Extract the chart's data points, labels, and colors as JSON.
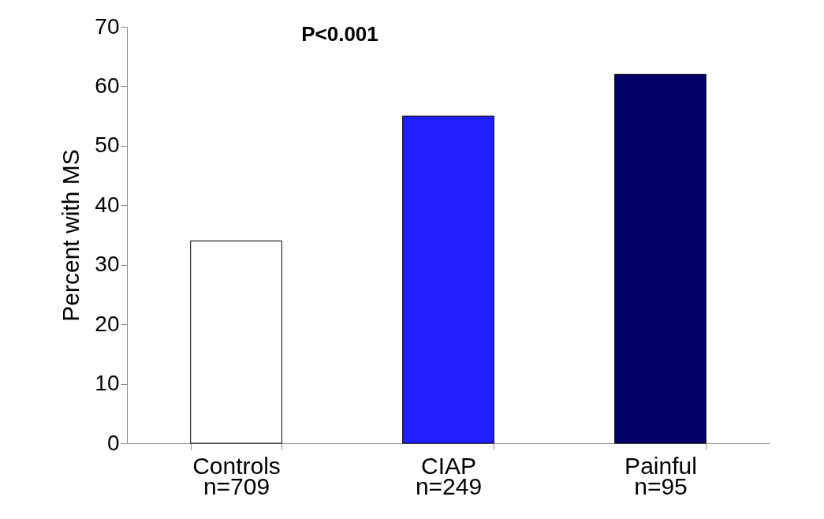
{
  "chart_data": {
    "type": "bar",
    "ylabel": "Percent with MS",
    "categories": [
      "Controls\nn=709",
      "CIAP\nn=249",
      "Painful\nn=95"
    ],
    "values": [
      34,
      55,
      62
    ],
    "colors": [
      "#ffffff",
      "#1f1fff",
      "#000066"
    ],
    "ylim": [
      0,
      70
    ],
    "yticks": [
      0,
      10,
      20,
      30,
      40,
      50,
      60,
      70
    ],
    "grid": false,
    "annotations": [
      "P<0.001"
    ]
  }
}
